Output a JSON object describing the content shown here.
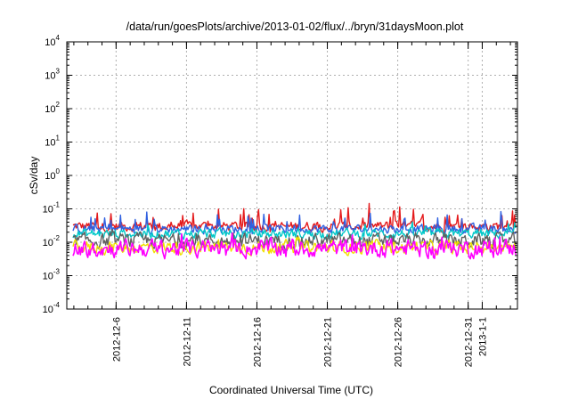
{
  "chart_data": {
    "type": "line",
    "title": "/data/run/goesPlots/archive/2013-01-02/flux/../bryn/31daysMoon.plot",
    "xlabel": "Coordinated Universal Time (UTC)",
    "ylabel": "cSv/day",
    "yscale": "log",
    "ylim": [
      0.0001,
      10000
    ],
    "xlim": [
      "2012-12-02T12:00",
      "2013-01-03T12:00"
    ],
    "grid": true,
    "legend": "none",
    "y_ticks": [
      {
        "base": "10",
        "exp": "-4"
      },
      {
        "base": "10",
        "exp": "-3"
      },
      {
        "base": "10",
        "exp": "-2"
      },
      {
        "base": "10",
        "exp": "-1"
      },
      {
        "base": "10",
        "exp": "0"
      },
      {
        "base": "10",
        "exp": "1"
      },
      {
        "base": "10",
        "exp": "2"
      },
      {
        "base": "10",
        "exp": "3"
      },
      {
        "base": "10",
        "exp": "4"
      }
    ],
    "x_ticks": [
      "2012-12-6",
      "2012-12-11",
      "2012-12-16",
      "2012-12-21",
      "2012-12-26",
      "2012-12-31",
      "2013-1-1"
    ],
    "series_meta": [
      {
        "color": "#e41a1c",
        "baseline": 0.03,
        "spread": 0.45,
        "spike_prob": 0.12,
        "spike_amp": 1.0
      },
      {
        "color": "#3060e0",
        "baseline": 0.025,
        "spread": 0.4,
        "spike_prob": 0.1,
        "spike_amp": 0.8
      },
      {
        "color": "#00c8c8",
        "baseline": 0.018,
        "spread": 0.45,
        "spike_prob": 0.05,
        "spike_amp": 0.5
      },
      {
        "color": "#606060",
        "baseline": 0.011,
        "spread": 0.65,
        "spike_prob": 0.04,
        "spike_amp": 0.4
      },
      {
        "color": "#f0e000",
        "baseline": 0.007,
        "spread": 0.6,
        "spike_prob": 0.03,
        "spike_amp": 0.4
      },
      {
        "color": "#ff00ff",
        "baseline": 0.0065,
        "spread": 0.8,
        "spike_prob": 0.06,
        "spike_amp": 0.5
      }
    ]
  }
}
